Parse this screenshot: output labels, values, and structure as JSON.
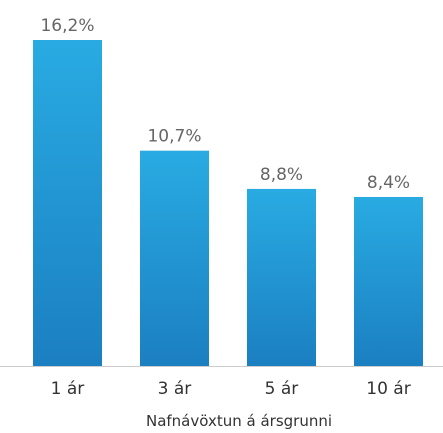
{
  "chart_data": {
    "type": "bar",
    "categories": [
      "1 ár",
      "3 ár",
      "5 ár",
      "10 ár"
    ],
    "values": [
      16.2,
      10.7,
      8.8,
      8.4
    ],
    "value_labels": [
      "16,2%",
      "10,7%",
      "8,8%",
      "8,4%"
    ],
    "xlabel": "Nafnávöxtun á ársgrunni",
    "ylabel": "",
    "ylim": [
      0,
      16.2
    ],
    "grid": false,
    "legend": "none",
    "bar_gradient": [
      "#29abe2",
      "#1b7fc1"
    ],
    "axis_color": "#cccccc"
  }
}
